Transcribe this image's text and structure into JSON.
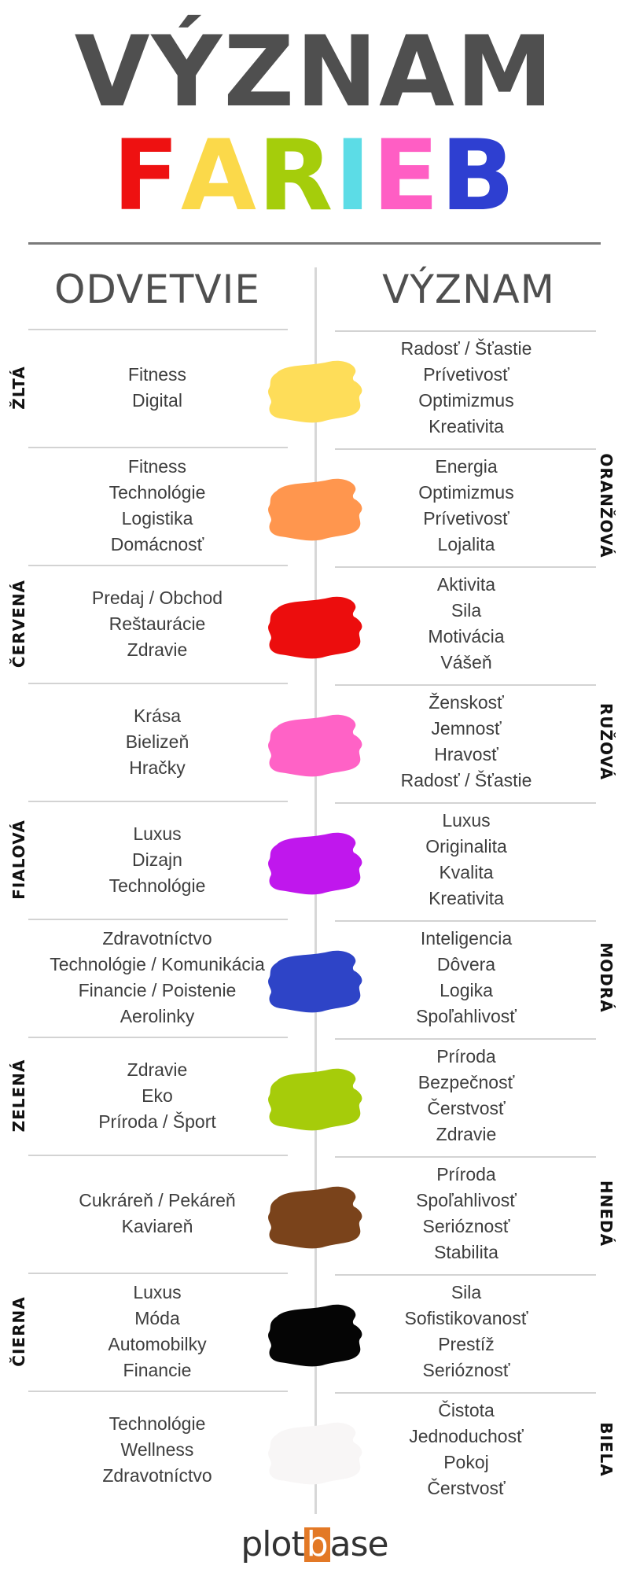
{
  "title": {
    "line1": "VÝZNAM",
    "line2_letters": [
      {
        "char": "F",
        "color": "#ee1111"
      },
      {
        "char": "A",
        "color": "#fbd94a"
      },
      {
        "char": "R",
        "color": "#a5cd0b"
      },
      {
        "char": "I",
        "color": "#5cdce6"
      },
      {
        "char": "E",
        "color": "#ff5ec4"
      },
      {
        "char": "B",
        "color": "#2e3fd1"
      }
    ]
  },
  "headers": {
    "left": "ODVETVIE",
    "right": "VÝZNAM"
  },
  "rows": [
    {
      "name": "ŽLTÁ",
      "side": "left",
      "color": "#fedd59",
      "industries": [
        "Fitness",
        "Digital"
      ],
      "meanings": [
        "Radosť / Šťastie",
        "Prívetivosť",
        "Optimizmus",
        "Kreativita"
      ]
    },
    {
      "name": "ORANŽOVÁ",
      "side": "right",
      "color": "#ff964e",
      "industries": [
        "Fitness",
        "Technológie",
        "Logistika",
        "Domácnosť"
      ],
      "meanings": [
        "Energia",
        "Optimizmus",
        "Prívetivosť",
        "Lojalita"
      ]
    },
    {
      "name": "ČERVENÁ",
      "side": "left",
      "color": "#ec0d0d",
      "industries": [
        "Predaj / Obchod",
        "Reštaurácie",
        "Zdravie"
      ],
      "meanings": [
        "Aktivita",
        "Sila",
        "Motivácia",
        "Vášeň"
      ]
    },
    {
      "name": "RUŽOVÁ",
      "side": "right",
      "color": "#ff62c6",
      "industries": [
        "Krása",
        "Bielizeň",
        "Hračky"
      ],
      "meanings": [
        "Ženskosť",
        "Jemnosť",
        "Hravosť",
        "Radosť / Šťastie"
      ]
    },
    {
      "name": "FIALOVÁ",
      "side": "left",
      "color": "#c017ed",
      "industries": [
        "Luxus",
        "Dizajn",
        "Technológie"
      ],
      "meanings": [
        "Luxus",
        "Originalita",
        "Kvalita",
        "Kreativita"
      ]
    },
    {
      "name": "MODRÁ",
      "side": "right",
      "color": "#2e44c7",
      "industries": [
        "Zdravotníctvo",
        "Technológie / Komunikácia",
        "Financie / Poistenie",
        "Aerolinky"
      ],
      "meanings": [
        "Inteligencia",
        "Dôvera",
        "Logika",
        "Spoľahlivosť"
      ]
    },
    {
      "name": "ZELENÁ",
      "side": "left",
      "color": "#a6cc0a",
      "industries": [
        "Zdravie",
        "Eko",
        "Príroda / Šport"
      ],
      "meanings": [
        "Príroda",
        "Bezpečnosť",
        "Čerstvosť",
        "Zdravie"
      ]
    },
    {
      "name": "HNEDÁ",
      "side": "right",
      "color": "#7a431b",
      "industries": [
        "Cukráreň / Pekáreň",
        "Kaviareň"
      ],
      "meanings": [
        "Príroda",
        "Spoľahlivosť",
        "Serióznosť",
        "Stabilita"
      ]
    },
    {
      "name": "ČIERNA",
      "side": "left",
      "color": "#050505",
      "industries": [
        "Luxus",
        "Móda",
        "Automobilky",
        "Financie"
      ],
      "meanings": [
        "Sila",
        "Sofistikovanosť",
        "Prestíž",
        "Serióznosť"
      ]
    },
    {
      "name": "BIELA",
      "side": "right",
      "color": "#f8f6f6",
      "industries": [
        "Technológie",
        "Wellness",
        "Zdravotníctvo"
      ],
      "meanings": [
        "Čistota",
        "Jednoduchosť",
        "Pokoj",
        "Čerstvosť"
      ]
    }
  ],
  "logo": {
    "part1": "plot",
    "highlight": "b",
    "part2": "ase",
    "highlight_color": "#e37926"
  }
}
